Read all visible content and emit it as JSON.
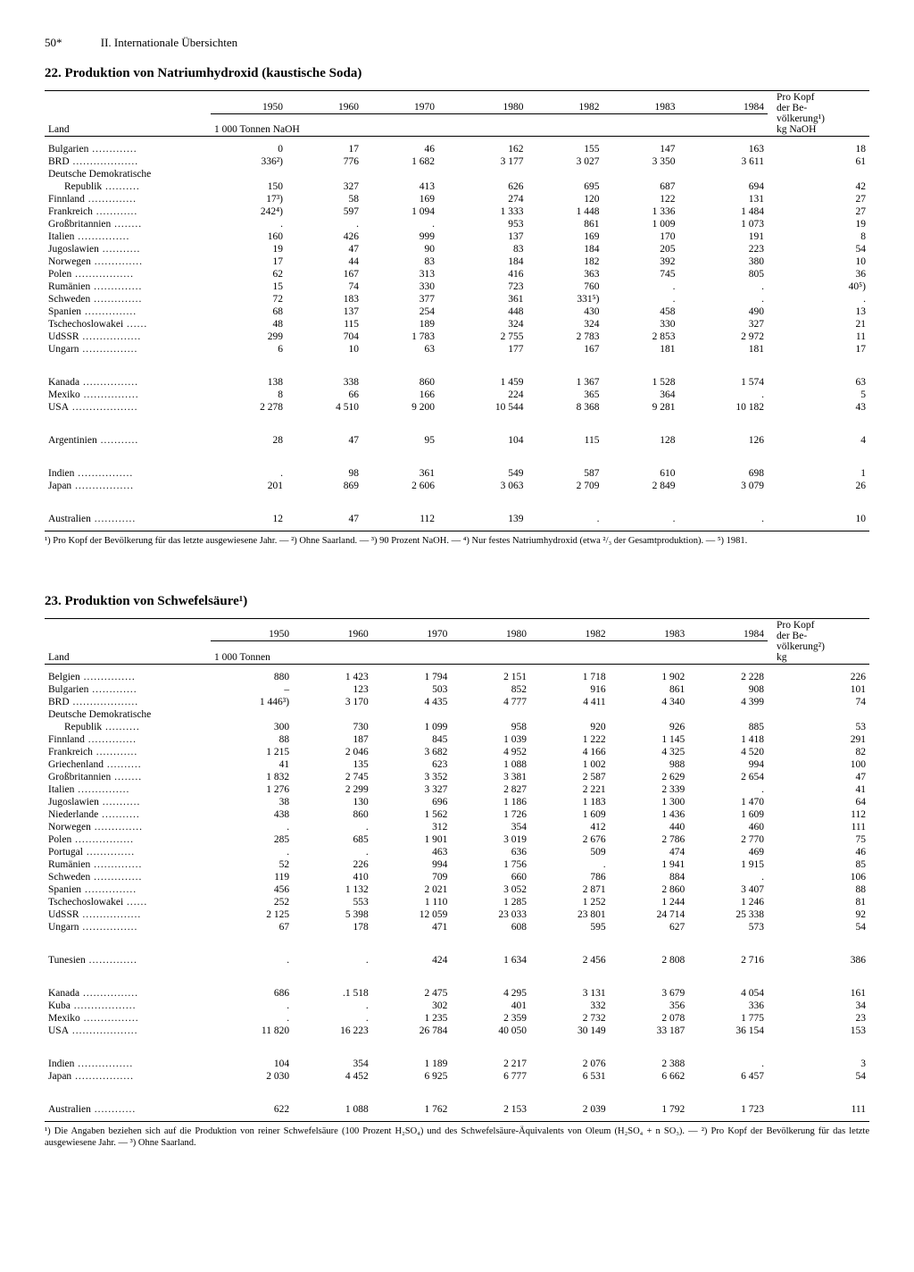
{
  "page": {
    "number": "50*",
    "section": "II. Internationale Übersichten"
  },
  "table22": {
    "title": "22. Produktion von Natriumhydroxid (kaustische Soda)",
    "columns": {
      "country": "Land",
      "y1950": "1950",
      "y1960": "1960",
      "y1970": "1970",
      "y1980": "1980",
      "y1982": "1982",
      "y1983": "1983",
      "y1984": "1984",
      "percap1": "Pro Kopf",
      "percap2": "der Be-",
      "percap3": "völkerung¹)",
      "percap4": "kg NaOH",
      "unit": "1 000 Tonnen NaOH"
    },
    "rows": [
      {
        "c": "Bulgarien",
        "v": [
          "0",
          "17",
          "46",
          "162",
          "155",
          "147",
          "163",
          "18"
        ]
      },
      {
        "c": "BRD",
        "v": [
          "336²)",
          "776",
          "1 682",
          "3 177",
          "3 027",
          "3 350",
          "3 611",
          "61"
        ]
      },
      {
        "c": "Deutsche Demokratische",
        "indent": false,
        "v": [
          "",
          "",
          "",
          "",
          "",
          "",
          "",
          ""
        ]
      },
      {
        "c": "Republik",
        "indent": true,
        "v": [
          "150",
          "327",
          "413",
          "626",
          "695",
          "687",
          "694",
          "42"
        ]
      },
      {
        "c": "Finnland",
        "v": [
          "17³)",
          "58",
          "169",
          "274",
          "120",
          "122",
          "131",
          "27"
        ]
      },
      {
        "c": "Frankreich",
        "v": [
          "242⁴)",
          "597",
          "1 094",
          "1 333",
          "1 448",
          "1 336",
          "1 484",
          "27"
        ]
      },
      {
        "c": "Großbritannien",
        "v": [
          ".",
          ".",
          ".",
          "953",
          "861",
          "1 009",
          "1 073",
          "19"
        ]
      },
      {
        "c": "Italien",
        "v": [
          "160",
          "426",
          "999",
          "137",
          "169",
          "170",
          "191",
          "8"
        ]
      },
      {
        "c": "Jugoslawien",
        "v": [
          "19",
          "47",
          "90",
          "83",
          "184",
          "205",
          "223",
          "54"
        ]
      },
      {
        "c": "Norwegen",
        "v": [
          "17",
          "44",
          "83",
          "184",
          "182",
          "392",
          "380",
          "10"
        ]
      },
      {
        "c": "Polen",
        "v": [
          "62",
          "167",
          "313",
          "416",
          "363",
          "745",
          "805",
          "36"
        ]
      },
      {
        "c": "Rumänien",
        "v": [
          "15",
          "74",
          "330",
          "723",
          "760",
          ".",
          ".",
          "40⁵)"
        ]
      },
      {
        "c": "Schweden",
        "v": [
          "72",
          "183",
          "377",
          "361",
          "331⁵)",
          ".",
          ".",
          "."
        ]
      },
      {
        "c": "Spanien",
        "v": [
          "68",
          "137",
          "254",
          "448",
          "430",
          "458",
          "490",
          "13"
        ]
      },
      {
        "c": "Tschechoslowakei",
        "v": [
          "48",
          "115",
          "189",
          "324",
          "324",
          "330",
          "327",
          "21"
        ]
      },
      {
        "c": "UdSSR",
        "v": [
          "299",
          "704",
          "1 783",
          "2 755",
          "2 783",
          "2 853",
          "2 972",
          "11"
        ]
      },
      {
        "c": "Ungarn",
        "v": [
          "6",
          "10",
          "63",
          "177",
          "167",
          "181",
          "181",
          "17"
        ]
      },
      {
        "gap": true
      },
      {
        "c": "Kanada",
        "v": [
          "138",
          "338",
          "860",
          "1 459",
          "1 367",
          "1 528",
          "1 574",
          "63"
        ]
      },
      {
        "c": "Mexiko",
        "v": [
          "8",
          "66",
          "166",
          "224",
          "365",
          "364",
          ".",
          "5"
        ]
      },
      {
        "c": "USA",
        "v": [
          "2 278",
          "4 510",
          "9 200",
          "10 544",
          "8 368",
          "9 281",
          "10 182",
          "43"
        ]
      },
      {
        "gap": true
      },
      {
        "c": "Argentinien",
        "v": [
          "28",
          "47",
          "95",
          "104",
          "115",
          "128",
          "126",
          "4"
        ]
      },
      {
        "gap": true
      },
      {
        "c": "Indien",
        "v": [
          ".",
          "98",
          "361",
          "549",
          "587",
          "610",
          "698",
          "1"
        ]
      },
      {
        "c": "Japan",
        "v": [
          "201",
          "869",
          "2 606",
          "3 063",
          "2 709",
          "2 849",
          "3 079",
          "26"
        ]
      },
      {
        "gap": true
      },
      {
        "c": "Australien",
        "v": [
          "12",
          "47",
          "112",
          "139",
          ".",
          ".",
          ".",
          "10"
        ]
      }
    ],
    "footnote": "¹) Pro Kopf der Bevölkerung für das letzte ausgewiesene Jahr. — ²) Ohne Saarland. — ³) 90 Prozent NaOH. — ⁴) Nur festes Natriumhydroxid (etwa ²/₃ der Gesamtproduktion). — ⁵) 1981."
  },
  "table23": {
    "title": "23. Produktion von Schwefelsäure¹)",
    "columns": {
      "country": "Land",
      "y1950": "1950",
      "y1960": "1960",
      "y1970": "1970",
      "y1980": "1980",
      "y1982": "1982",
      "y1983": "1983",
      "y1984": "1984",
      "percap1": "Pro Kopf",
      "percap2": "der Be-",
      "percap3": "völkerung²)",
      "percap4": "kg",
      "unit": "1 000 Tonnen"
    },
    "rows": [
      {
        "c": "Belgien",
        "v": [
          "880",
          "1 423",
          "1 794",
          "2 151",
          "1 718",
          "1 902",
          "2 228",
          "226"
        ]
      },
      {
        "c": "Bulgarien",
        "v": [
          "–",
          "123",
          "503",
          "852",
          "916",
          "861",
          "908",
          "101"
        ]
      },
      {
        "c": "BRD",
        "v": [
          "1 446³)",
          "3 170",
          "4 435",
          "4 777",
          "4 411",
          "4 340",
          "4 399",
          "74"
        ]
      },
      {
        "c": "Deutsche Demokratische",
        "indent": false,
        "v": [
          "",
          "",
          "",
          "",
          "",
          "",
          "",
          ""
        ]
      },
      {
        "c": "Republik",
        "indent": true,
        "v": [
          "300",
          "730",
          "1 099",
          "958",
          "920",
          "926",
          "885",
          "53"
        ]
      },
      {
        "c": "Finnland",
        "v": [
          "88",
          "187",
          "845",
          "1 039",
          "1 222",
          "1 145",
          "1 418",
          "291"
        ]
      },
      {
        "c": "Frankreich",
        "v": [
          "1 215",
          "2 046",
          "3 682",
          "4 952",
          "4 166",
          "4 325",
          "4 520",
          "82"
        ]
      },
      {
        "c": "Griechenland",
        "v": [
          "41",
          "135",
          "623",
          "1 088",
          "1 002",
          "988",
          "994",
          "100"
        ]
      },
      {
        "c": "Großbritannien",
        "v": [
          "1 832",
          "2 745",
          "3 352",
          "3 381",
          "2 587",
          "2 629",
          "2 654",
          "47"
        ]
      },
      {
        "c": "Italien",
        "v": [
          "1 276",
          "2 299",
          "3 327",
          "2 827",
          "2 221",
          "2 339",
          ".",
          "41"
        ]
      },
      {
        "c": "Jugoslawien",
        "v": [
          "38",
          "130",
          "696",
          "1 186",
          "1 183",
          "1 300",
          "1 470",
          "64"
        ]
      },
      {
        "c": "Niederlande",
        "v": [
          "438",
          "860",
          "1 562",
          "1 726",
          "1 609",
          "1 436",
          "1 609",
          "112"
        ]
      },
      {
        "c": "Norwegen",
        "v": [
          ".",
          ".",
          "312",
          "354",
          "412",
          "440",
          "460",
          "111"
        ]
      },
      {
        "c": "Polen",
        "v": [
          "285",
          "685",
          "1 901",
          "3 019",
          "2 676",
          "2 786",
          "2 770",
          "75"
        ]
      },
      {
        "c": "Portugal",
        "v": [
          ".",
          ".",
          "463",
          "636",
          "509",
          "474",
          "469",
          "46"
        ]
      },
      {
        "c": "Rumänien",
        "v": [
          "52",
          "226",
          "994",
          "1 756",
          ".",
          "1 941",
          "1 915",
          "85"
        ]
      },
      {
        "c": "Schweden",
        "v": [
          "119",
          "410",
          "709",
          "660",
          "786",
          "884",
          ".",
          "106"
        ]
      },
      {
        "c": "Spanien",
        "v": [
          "456",
          "1 132",
          "2 021",
          "3 052",
          "2 871",
          "2 860",
          "3 407",
          "88"
        ]
      },
      {
        "c": "Tschechoslowakei",
        "v": [
          "252",
          "553",
          "1 110",
          "1 285",
          "1 252",
          "1 244",
          "1 246",
          "81"
        ]
      },
      {
        "c": "UdSSR",
        "v": [
          "2 125",
          "5 398",
          "12 059",
          "23 033",
          "23 801",
          "24 714",
          "25 338",
          "92"
        ]
      },
      {
        "c": "Ungarn",
        "v": [
          "67",
          "178",
          "471",
          "608",
          "595",
          "627",
          "573",
          "54"
        ]
      },
      {
        "gap": true
      },
      {
        "c": "Tunesien",
        "v": [
          ".",
          ".",
          "424",
          "1 634",
          "2 456",
          "2 808",
          "2 716",
          "386"
        ]
      },
      {
        "gap": true
      },
      {
        "c": "Kanada",
        "v": [
          "686",
          ".1 518",
          "2 475",
          "4 295",
          "3 131",
          "3 679",
          "4 054",
          "161"
        ]
      },
      {
        "c": "Kuba",
        "v": [
          ".",
          ".",
          "302",
          "401",
          "332",
          "356",
          "336",
          "34"
        ]
      },
      {
        "c": "Mexiko",
        "v": [
          ".",
          ".",
          "1 235",
          "2 359",
          "2 732",
          "2 078",
          "1 775",
          "23"
        ]
      },
      {
        "c": "USA",
        "v": [
          "11 820",
          "16 223",
          "26 784",
          "40 050",
          "30 149",
          "33 187",
          "36 154",
          "153"
        ]
      },
      {
        "gap": true
      },
      {
        "c": "Indien",
        "v": [
          "104",
          "354",
          "1 189",
          "2 217",
          "2 076",
          "2 388",
          ".",
          "3"
        ]
      },
      {
        "c": "Japan",
        "v": [
          "2 030",
          "4 452",
          "6 925",
          "6 777",
          "6 531",
          "6 662",
          "6 457",
          "54"
        ]
      },
      {
        "gap": true
      },
      {
        "c": "Australien",
        "v": [
          "622",
          "1 088",
          "1 762",
          "2 153",
          "2 039",
          "1 792",
          "1 723",
          "111"
        ]
      }
    ],
    "footnote": "¹) Die Angaben beziehen sich auf die Produktion von reiner Schwefelsäure (100 Prozent H₂SO₄) und des Schwefelsäure-Äquivalents von Oleum (H₂SO₄ + n SO₃). — ²) Pro Kopf der Bevölkerung für das letzte ausgewiesene Jahr. — ³) Ohne Saarland."
  }
}
